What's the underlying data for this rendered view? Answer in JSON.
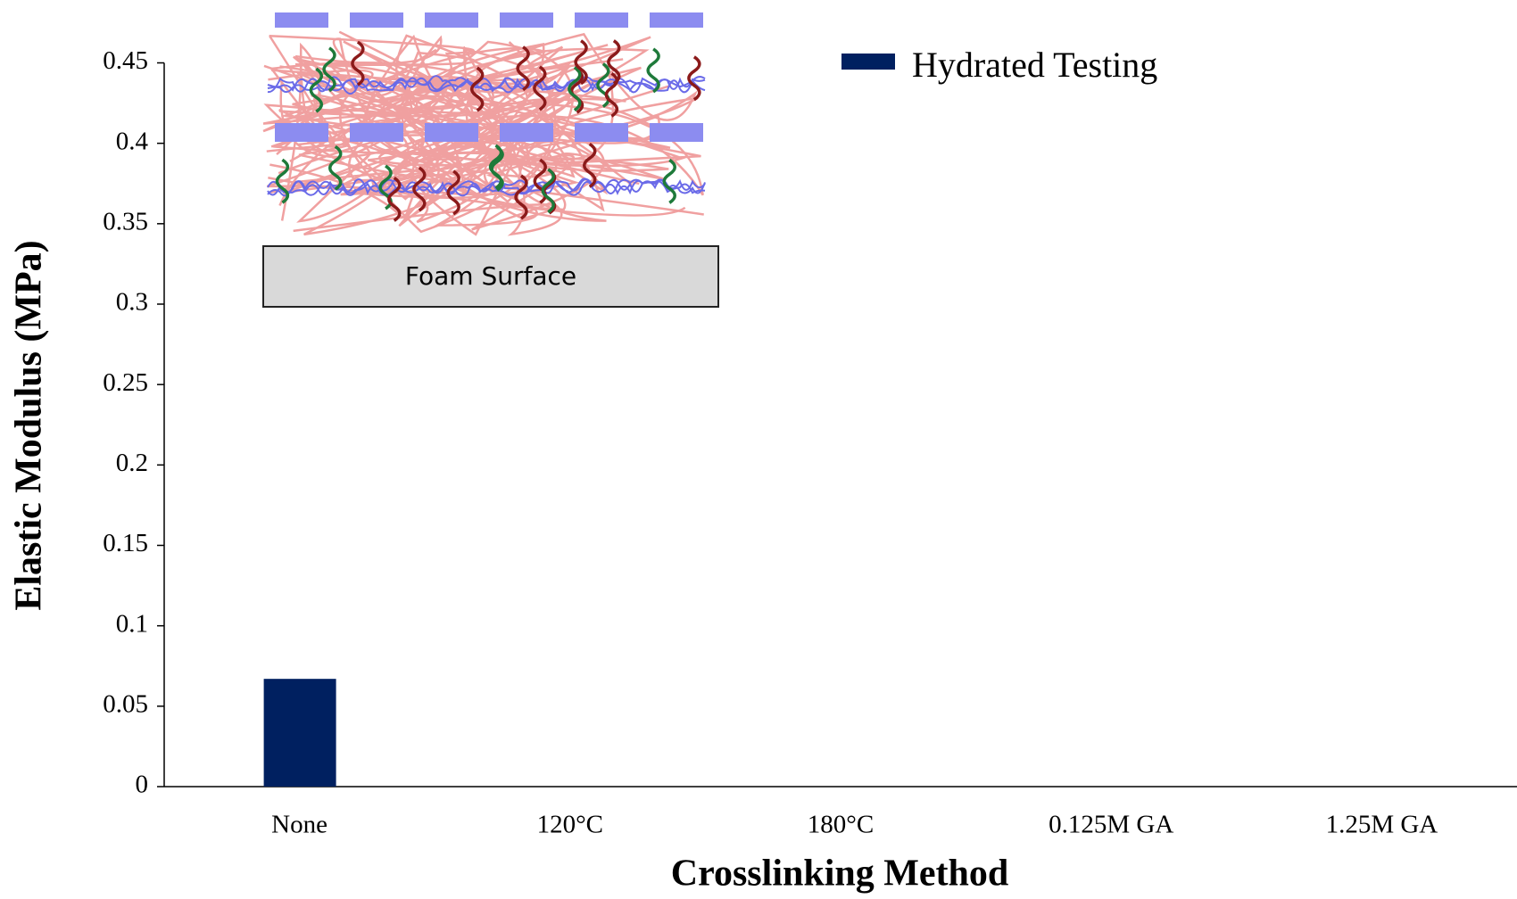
{
  "chart_data": {
    "type": "bar",
    "y_label": "Elastic Modulus (MPa)",
    "x_label": "Crosslinking Method",
    "inset_label": "Foam Surface",
    "categories": [
      "None",
      "120°C",
      "180°C",
      "0.125M GA",
      "1.25M GA"
    ],
    "series": [
      {
        "name": "Hydrated Testing",
        "color": "#002060",
        "values": [
          0.067,
          null,
          null,
          null,
          null
        ]
      }
    ],
    "ylim": [
      0,
      0.45
    ],
    "yticks": [
      0,
      0.05,
      0.1,
      0.15,
      0.2,
      0.25,
      0.3,
      0.35,
      0.4,
      0.45
    ],
    "grid": false,
    "legend": "top-right"
  }
}
